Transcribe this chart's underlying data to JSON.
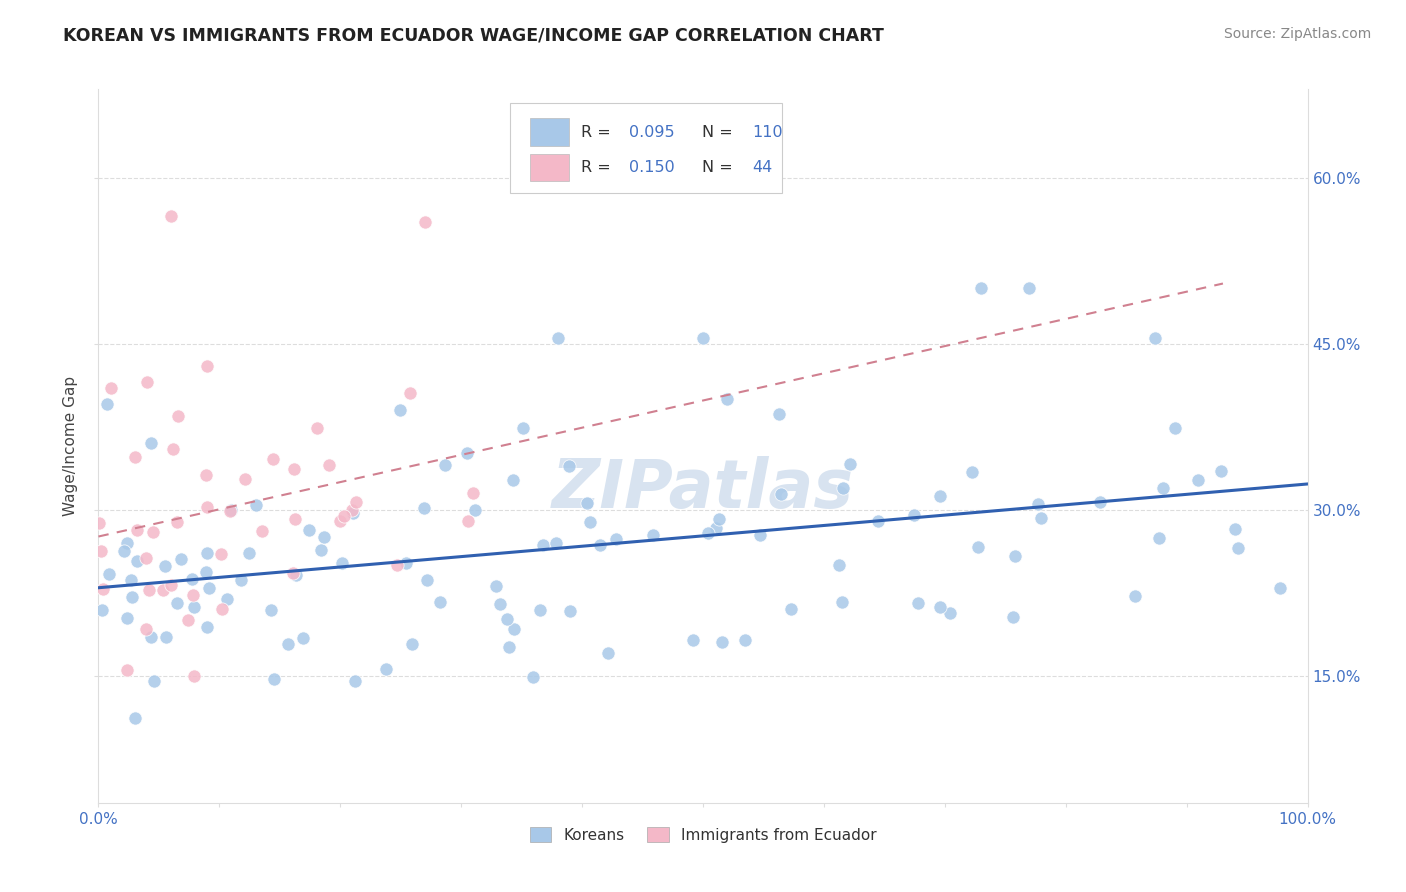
{
  "title": "KOREAN VS IMMIGRANTS FROM ECUADOR WAGE/INCOME GAP CORRELATION CHART",
  "source": "Source: ZipAtlas.com",
  "ylabel": "Wage/Income Gap",
  "watermark": "ZIPatlas",
  "legend_labels": [
    "Koreans",
    "Immigrants from Ecuador"
  ],
  "blue_color": "#a8c8e8",
  "pink_color": "#f4b8c8",
  "blue_line_color": "#3060b0",
  "pink_line_color": "#d08090",
  "ytick_labels": [
    "15.0%",
    "30.0%",
    "45.0%",
    "60.0%"
  ],
  "ytick_values": [
    0.15,
    0.3,
    0.45,
    0.6
  ],
  "xlim": [
    0.0,
    1.0
  ],
  "ylim": [
    0.035,
    0.68
  ],
  "blue_R": 0.095,
  "blue_N": 110,
  "pink_R": 0.15,
  "pink_N": 44,
  "blue_seed": 42,
  "pink_seed": 99,
  "bg_color": "#ffffff",
  "grid_color": "#dddddd",
  "tick_color": "#4472c4",
  "title_color": "#222222",
  "source_color": "#888888",
  "ylabel_color": "#444444"
}
